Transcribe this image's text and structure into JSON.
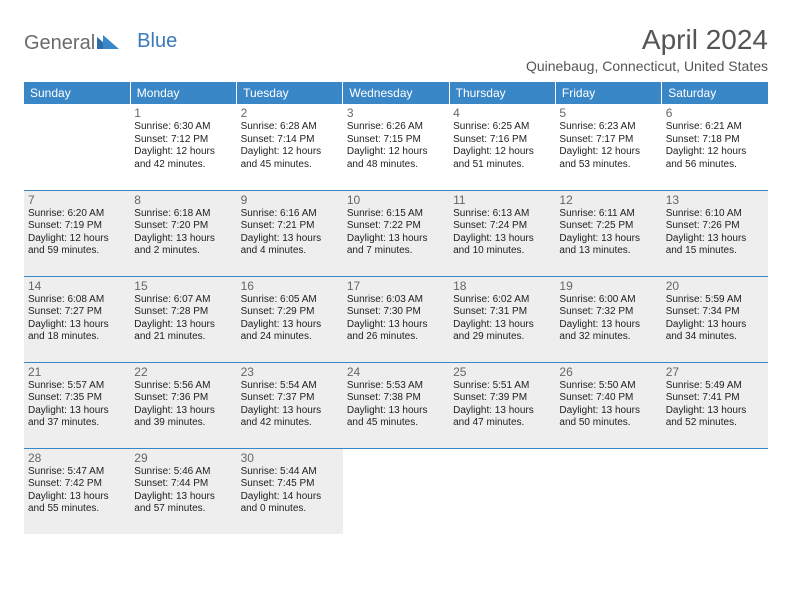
{
  "logo": {
    "part1": "General",
    "part2": "Blue"
  },
  "title": "April 2024",
  "location": "Quinebaug, Connecticut, United States",
  "colors": {
    "header_bg": "#3a87c8",
    "header_fg": "#ffffff",
    "alt_bg": "#eeeeee",
    "border": "#3a87c8",
    "logo_gray": "#6b6b6b",
    "logo_blue": "#3a7ab8"
  },
  "day_headers": [
    "Sunday",
    "Monday",
    "Tuesday",
    "Wednesday",
    "Thursday",
    "Friday",
    "Saturday"
  ],
  "weeks": [
    {
      "alt": false,
      "days": [
        null,
        {
          "n": "1",
          "sr": "Sunrise: 6:30 AM",
          "ss": "Sunset: 7:12 PM",
          "dl1": "Daylight: 12 hours",
          "dl2": "and 42 minutes."
        },
        {
          "n": "2",
          "sr": "Sunrise: 6:28 AM",
          "ss": "Sunset: 7:14 PM",
          "dl1": "Daylight: 12 hours",
          "dl2": "and 45 minutes."
        },
        {
          "n": "3",
          "sr": "Sunrise: 6:26 AM",
          "ss": "Sunset: 7:15 PM",
          "dl1": "Daylight: 12 hours",
          "dl2": "and 48 minutes."
        },
        {
          "n": "4",
          "sr": "Sunrise: 6:25 AM",
          "ss": "Sunset: 7:16 PM",
          "dl1": "Daylight: 12 hours",
          "dl2": "and 51 minutes."
        },
        {
          "n": "5",
          "sr": "Sunrise: 6:23 AM",
          "ss": "Sunset: 7:17 PM",
          "dl1": "Daylight: 12 hours",
          "dl2": "and 53 minutes."
        },
        {
          "n": "6",
          "sr": "Sunrise: 6:21 AM",
          "ss": "Sunset: 7:18 PM",
          "dl1": "Daylight: 12 hours",
          "dl2": "and 56 minutes."
        }
      ]
    },
    {
      "alt": true,
      "days": [
        {
          "n": "7",
          "sr": "Sunrise: 6:20 AM",
          "ss": "Sunset: 7:19 PM",
          "dl1": "Daylight: 12 hours",
          "dl2": "and 59 minutes."
        },
        {
          "n": "8",
          "sr": "Sunrise: 6:18 AM",
          "ss": "Sunset: 7:20 PM",
          "dl1": "Daylight: 13 hours",
          "dl2": "and 2 minutes."
        },
        {
          "n": "9",
          "sr": "Sunrise: 6:16 AM",
          "ss": "Sunset: 7:21 PM",
          "dl1": "Daylight: 13 hours",
          "dl2": "and 4 minutes."
        },
        {
          "n": "10",
          "sr": "Sunrise: 6:15 AM",
          "ss": "Sunset: 7:22 PM",
          "dl1": "Daylight: 13 hours",
          "dl2": "and 7 minutes."
        },
        {
          "n": "11",
          "sr": "Sunrise: 6:13 AM",
          "ss": "Sunset: 7:24 PM",
          "dl1": "Daylight: 13 hours",
          "dl2": "and 10 minutes."
        },
        {
          "n": "12",
          "sr": "Sunrise: 6:11 AM",
          "ss": "Sunset: 7:25 PM",
          "dl1": "Daylight: 13 hours",
          "dl2": "and 13 minutes."
        },
        {
          "n": "13",
          "sr": "Sunrise: 6:10 AM",
          "ss": "Sunset: 7:26 PM",
          "dl1": "Daylight: 13 hours",
          "dl2": "and 15 minutes."
        }
      ]
    },
    {
      "alt": true,
      "days": [
        {
          "n": "14",
          "sr": "Sunrise: 6:08 AM",
          "ss": "Sunset: 7:27 PM",
          "dl1": "Daylight: 13 hours",
          "dl2": "and 18 minutes."
        },
        {
          "n": "15",
          "sr": "Sunrise: 6:07 AM",
          "ss": "Sunset: 7:28 PM",
          "dl1": "Daylight: 13 hours",
          "dl2": "and 21 minutes."
        },
        {
          "n": "16",
          "sr": "Sunrise: 6:05 AM",
          "ss": "Sunset: 7:29 PM",
          "dl1": "Daylight: 13 hours",
          "dl2": "and 24 minutes."
        },
        {
          "n": "17",
          "sr": "Sunrise: 6:03 AM",
          "ss": "Sunset: 7:30 PM",
          "dl1": "Daylight: 13 hours",
          "dl2": "and 26 minutes."
        },
        {
          "n": "18",
          "sr": "Sunrise: 6:02 AM",
          "ss": "Sunset: 7:31 PM",
          "dl1": "Daylight: 13 hours",
          "dl2": "and 29 minutes."
        },
        {
          "n": "19",
          "sr": "Sunrise: 6:00 AM",
          "ss": "Sunset: 7:32 PM",
          "dl1": "Daylight: 13 hours",
          "dl2": "and 32 minutes."
        },
        {
          "n": "20",
          "sr": "Sunrise: 5:59 AM",
          "ss": "Sunset: 7:34 PM",
          "dl1": "Daylight: 13 hours",
          "dl2": "and 34 minutes."
        }
      ]
    },
    {
      "alt": true,
      "days": [
        {
          "n": "21",
          "sr": "Sunrise: 5:57 AM",
          "ss": "Sunset: 7:35 PM",
          "dl1": "Daylight: 13 hours",
          "dl2": "and 37 minutes."
        },
        {
          "n": "22",
          "sr": "Sunrise: 5:56 AM",
          "ss": "Sunset: 7:36 PM",
          "dl1": "Daylight: 13 hours",
          "dl2": "and 39 minutes."
        },
        {
          "n": "23",
          "sr": "Sunrise: 5:54 AM",
          "ss": "Sunset: 7:37 PM",
          "dl1": "Daylight: 13 hours",
          "dl2": "and 42 minutes."
        },
        {
          "n": "24",
          "sr": "Sunrise: 5:53 AM",
          "ss": "Sunset: 7:38 PM",
          "dl1": "Daylight: 13 hours",
          "dl2": "and 45 minutes."
        },
        {
          "n": "25",
          "sr": "Sunrise: 5:51 AM",
          "ss": "Sunset: 7:39 PM",
          "dl1": "Daylight: 13 hours",
          "dl2": "and 47 minutes."
        },
        {
          "n": "26",
          "sr": "Sunrise: 5:50 AM",
          "ss": "Sunset: 7:40 PM",
          "dl1": "Daylight: 13 hours",
          "dl2": "and 50 minutes."
        },
        {
          "n": "27",
          "sr": "Sunrise: 5:49 AM",
          "ss": "Sunset: 7:41 PM",
          "dl1": "Daylight: 13 hours",
          "dl2": "and 52 minutes."
        }
      ]
    },
    {
      "alt": true,
      "last": true,
      "days": [
        {
          "n": "28",
          "sr": "Sunrise: 5:47 AM",
          "ss": "Sunset: 7:42 PM",
          "dl1": "Daylight: 13 hours",
          "dl2": "and 55 minutes."
        },
        {
          "n": "29",
          "sr": "Sunrise: 5:46 AM",
          "ss": "Sunset: 7:44 PM",
          "dl1": "Daylight: 13 hours",
          "dl2": "and 57 minutes."
        },
        {
          "n": "30",
          "sr": "Sunrise: 5:44 AM",
          "ss": "Sunset: 7:45 PM",
          "dl1": "Daylight: 14 hours",
          "dl2": "and 0 minutes."
        },
        null,
        null,
        null,
        null
      ]
    }
  ]
}
